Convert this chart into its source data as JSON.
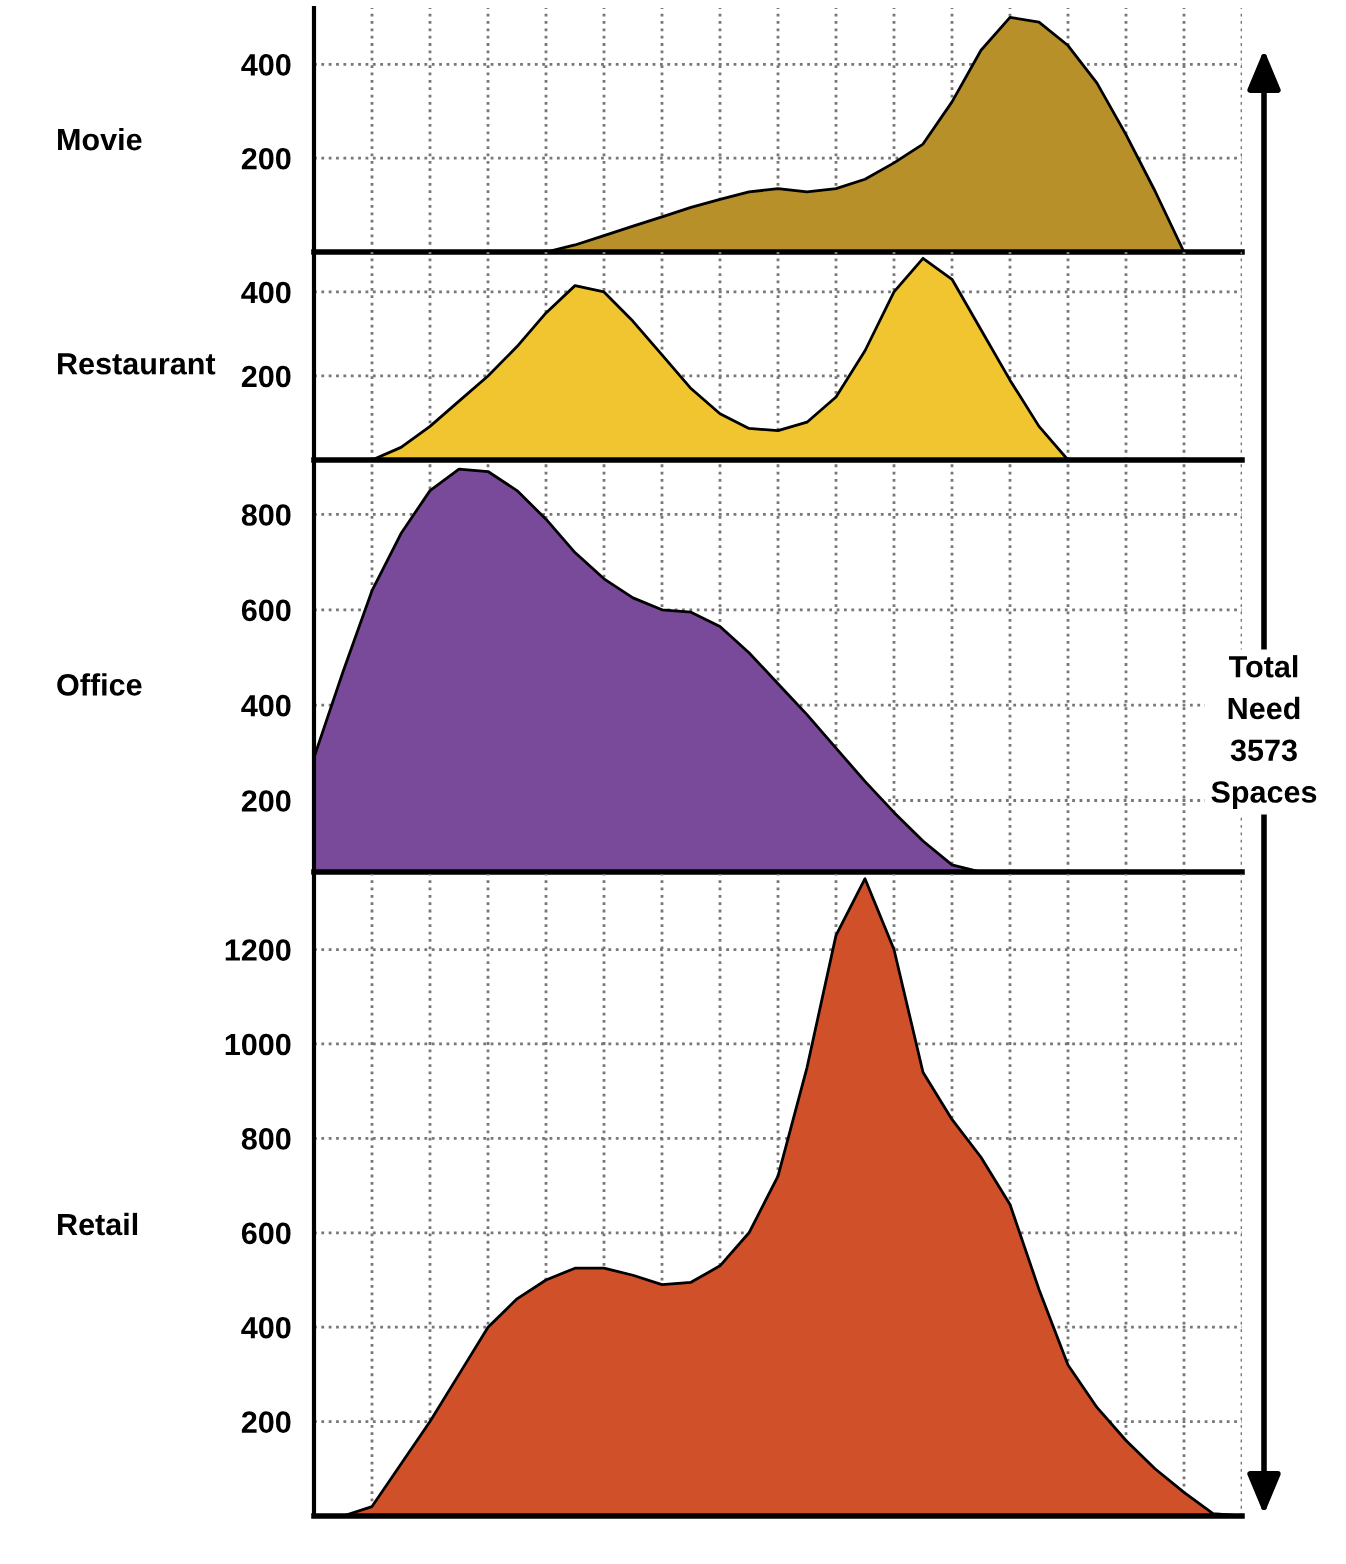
{
  "chart_data": [
    {
      "type": "area",
      "ylabel": "Movie",
      "categories": [
        null,
        null,
        null,
        null,
        null,
        null,
        null,
        null,
        null,
        null,
        null,
        null,
        null,
        null,
        null,
        null,
        null,
        null,
        null,
        null,
        null,
        null,
        null,
        null,
        null,
        null,
        null,
        null,
        null,
        null,
        null,
        null,
        null
      ],
      "series": [
        {
          "color": "#b8902a",
          "values": [
            0,
            0,
            0,
            0,
            0,
            0,
            0,
            0,
            0,
            15,
            35,
            55,
            75,
            95,
            112,
            128,
            135,
            128,
            135,
            155,
            190,
            230,
            320,
            430,
            500,
            490,
            440,
            360,
            250,
            130,
            0,
            0,
            0
          ]
        }
      ],
      "ylim": [
        0,
        520
      ],
      "yticks": [
        200,
        400
      ],
      "grid": true,
      "tick_labels": "y"
    },
    {
      "type": "area",
      "ylabel": "Restaurant",
      "categories": [
        null,
        null,
        null,
        null,
        null,
        null,
        null,
        null,
        null,
        null,
        null,
        null,
        null,
        null,
        null,
        null,
        null,
        null,
        null,
        null,
        null,
        null,
        null,
        null,
        null,
        null,
        null,
        null,
        null,
        null,
        null,
        null,
        null
      ],
      "series": [
        {
          "color": "#f0c530",
          "values": [
            0,
            0,
            0,
            30,
            80,
            140,
            200,
            270,
            350,
            415,
            400,
            330,
            250,
            170,
            110,
            75,
            70,
            90,
            150,
            260,
            400,
            480,
            430,
            310,
            190,
            80,
            0,
            0,
            0,
            0,
            0,
            0,
            0
          ]
        }
      ],
      "ylim": [
        0,
        495
      ],
      "yticks": [
        200,
        400
      ],
      "grid": true,
      "tick_labels": "y"
    },
    {
      "type": "area",
      "ylabel": "Office",
      "categories": [
        null,
        null,
        null,
        null,
        null,
        null,
        null,
        null,
        null,
        null,
        null,
        null,
        null,
        null,
        null,
        null,
        null,
        null,
        null,
        null,
        null,
        null,
        null,
        null,
        null,
        null,
        null,
        null,
        null,
        null,
        null,
        null,
        null
      ],
      "series": [
        {
          "color": "#7a4a9a",
          "values": [
            290,
            470,
            640,
            760,
            850,
            895,
            890,
            850,
            790,
            720,
            665,
            625,
            600,
            595,
            565,
            510,
            445,
            380,
            310,
            240,
            175,
            115,
            65,
            50,
            null,
            null,
            null,
            null,
            null,
            null,
            null,
            null,
            null
          ]
        }
      ],
      "ylim": [
        50,
        910
      ],
      "yticks": [
        200,
        400,
        600,
        800
      ],
      "grid": true,
      "tick_labels": "y",
      "annotations": [
        "Total\nNeed\n3573\nSpaces"
      ]
    },
    {
      "type": "area",
      "ylabel": "Retail",
      "categories": [
        null,
        null,
        null,
        null,
        null,
        null,
        null,
        null,
        null,
        null,
        null,
        null,
        null,
        null,
        null,
        null,
        null,
        null,
        null,
        null,
        null,
        null,
        null,
        null,
        null,
        null,
        null,
        null,
        null,
        null,
        null,
        null,
        null
      ],
      "series": [
        {
          "color": "#d0502a",
          "values": [
            0,
            0,
            20,
            110,
            200,
            300,
            400,
            460,
            500,
            525,
            525,
            510,
            490,
            495,
            530,
            600,
            720,
            950,
            1230,
            1350,
            1200,
            940,
            840,
            760,
            660,
            480,
            320,
            230,
            160,
            100,
            50,
            5,
            0
          ]
        }
      ],
      "ylim": [
        0,
        1360
      ],
      "yticks": [
        200,
        400,
        600,
        800,
        1000,
        1200
      ],
      "grid": true,
      "tick_labels": "y"
    }
  ]
}
